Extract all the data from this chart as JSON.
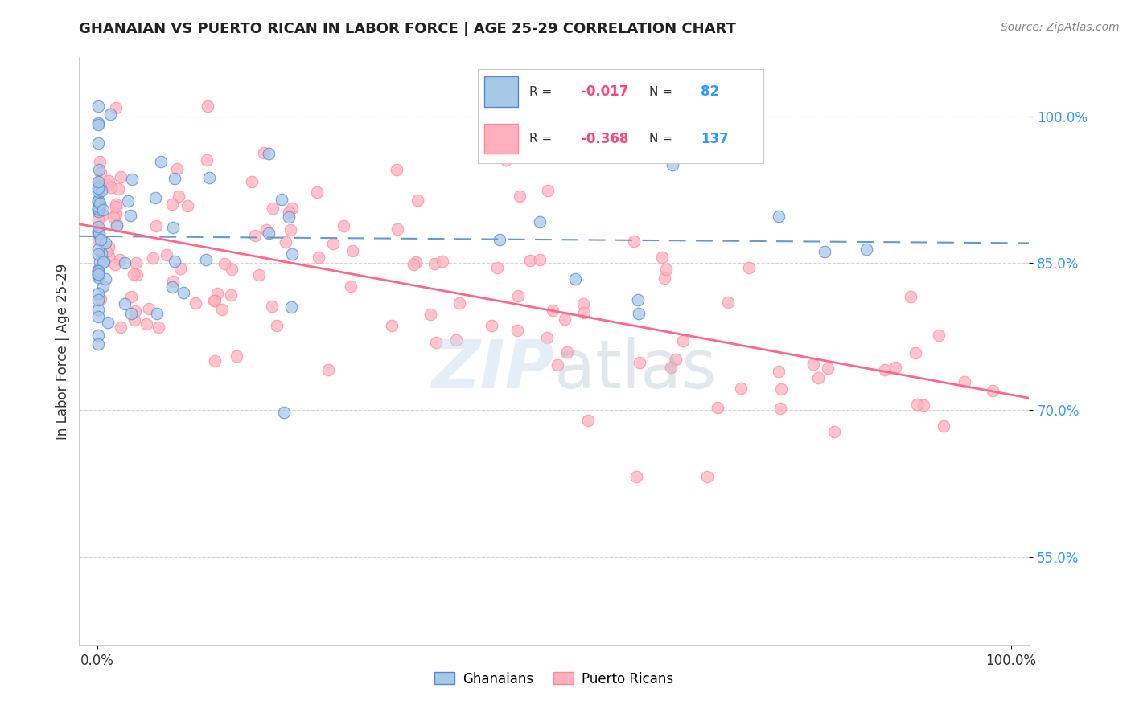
{
  "title": "GHANAIAN VS PUERTO RICAN IN LABOR FORCE | AGE 25-29 CORRELATION CHART",
  "source_text": "Source: ZipAtlas.com",
  "ylabel": "In Labor Force | Age 25-29",
  "xlim": [
    -0.02,
    1.02
  ],
  "ylim": [
    0.46,
    1.06
  ],
  "yticks": [
    0.55,
    0.7,
    0.85,
    1.0
  ],
  "ytick_labels": [
    "55.0%",
    "70.0%",
    "85.0%",
    "100.0%"
  ],
  "xticks": [
    0.0,
    1.0
  ],
  "xtick_labels": [
    "0.0%",
    "100.0%"
  ],
  "blue_scatter_color": "#A8C8E8",
  "blue_edge_color": "#5588CC",
  "pink_scatter_color": "#FFB0C0",
  "pink_edge_color": "#FF8899",
  "trend_blue_color": "#6699CC",
  "trend_pink_color": "#FF6688",
  "grid_color": "#BBBBBB",
  "watermark_color": "#CCDDF0",
  "title_color": "#222222",
  "source_color": "#888888",
  "ytick_color": "#3399FF",
  "xtick_color": "#333333",
  "ylabel_color": "#333333",
  "legend_text_color": "#333333",
  "legend_r_value_color": "#FF4477",
  "legend_n_value_color": "#3399FF",
  "background_color": "#ffffff"
}
